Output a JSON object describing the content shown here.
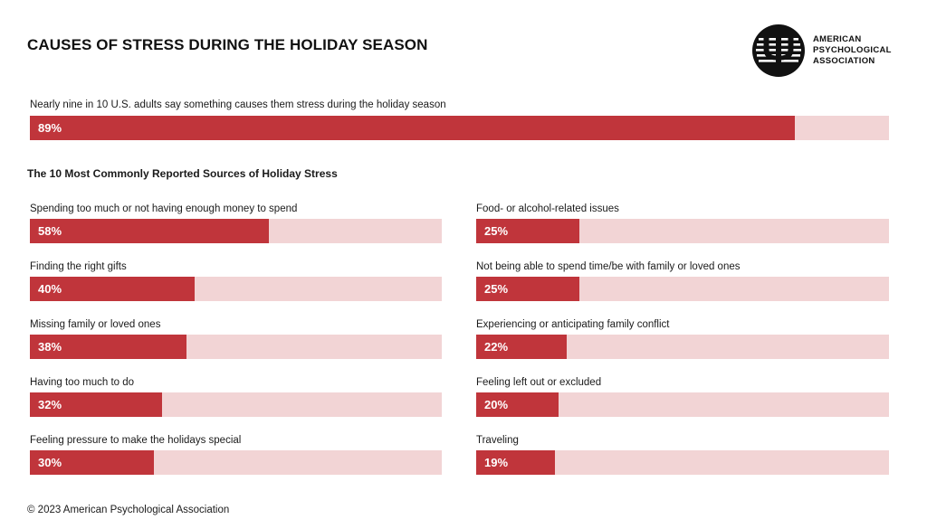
{
  "header": {
    "title": "CAUSES OF STRESS DURING THE HOLIDAY SEASON"
  },
  "logo": {
    "line1": "AMERICAN",
    "line2": "PSYCHOLOGICAL",
    "line3": "ASSOCIATION",
    "icon": "psi-emblem-icon"
  },
  "colors": {
    "fill": "#c0353b",
    "track": "#f2d4d5",
    "text": "#1a1a1a"
  },
  "chart_data": [
    {
      "type": "bar",
      "orientation": "horizontal",
      "categories": [
        "Nearly nine in 10 U.S. adults say something causes them stress during the holiday season"
      ],
      "values": [
        89
      ],
      "value_labels": [
        "89%"
      ],
      "title": "",
      "xlim": [
        0,
        100
      ]
    },
    {
      "type": "bar",
      "orientation": "horizontal",
      "title": "The 10 Most Commonly Reported Sources of Holiday Stress",
      "xlim": [
        0,
        100
      ],
      "categories": [
        "Spending too much or not having enough money to spend",
        "Finding the right gifts",
        "Missing family or loved ones",
        "Having too much to do",
        "Feeling pressure to make the holidays special",
        "Food- or alcohol-related issues",
        "Not being able to spend time/be with family or loved ones",
        "Experiencing or anticipating family conflict",
        "Feeling left out or excluded",
        "Traveling"
      ],
      "values": [
        58,
        40,
        38,
        32,
        30,
        25,
        25,
        22,
        20,
        19
      ],
      "value_labels": [
        "58%",
        "40%",
        "38%",
        "32%",
        "30%",
        "25%",
        "25%",
        "22%",
        "20%",
        "19%"
      ]
    }
  ],
  "footer": {
    "copyright": "© 2023 American Psychological Association"
  }
}
